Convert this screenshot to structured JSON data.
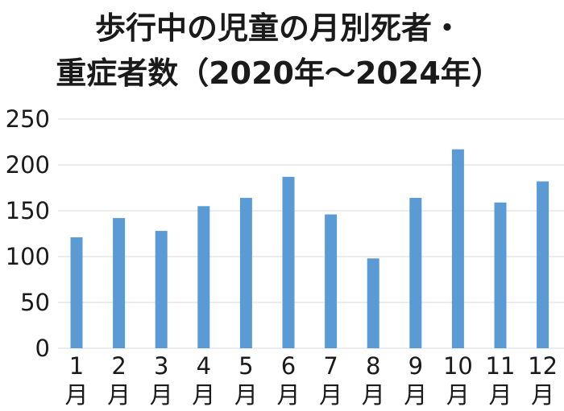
{
  "chart_data": {
    "type": "bar",
    "title_lines": [
      "歩行中の児童の月別死者・",
      "重症者数（2020年～2024年）"
    ],
    "categories": [
      "1",
      "2",
      "3",
      "4",
      "5",
      "6",
      "7",
      "8",
      "9",
      "10",
      "11",
      "12"
    ],
    "category_suffix": "月",
    "values": [
      121,
      142,
      128,
      155,
      164,
      187,
      146,
      98,
      164,
      217,
      159,
      182
    ],
    "yticks": [
      0,
      50,
      100,
      150,
      200,
      250
    ],
    "ylim": [
      0,
      250
    ],
    "grid": true,
    "bar_color": "#5b9bd5",
    "grid_color": "#d9d9d9",
    "legend": "none"
  }
}
